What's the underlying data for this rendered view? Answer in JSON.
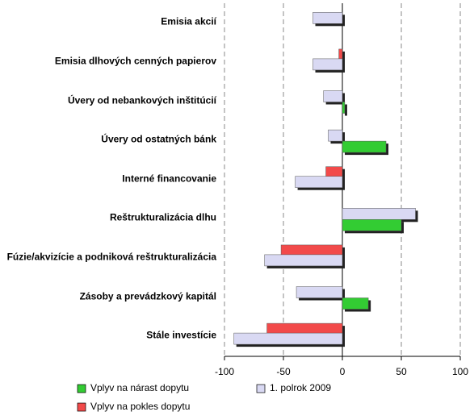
{
  "chart_data": {
    "type": "bar",
    "orientation": "horizontal",
    "categories": [
      "Emisia akcií",
      "Emisia dlhových cenných papierov",
      "Úvery od nebankových inštitúcií",
      "Úvery od ostatných bánk",
      "Interné financovanie",
      "Reštrukturalizácia dlhu",
      "Fúzie/akvizície a podniková reštrukturalizácia",
      "Zásoby a prevádzkový kapitál",
      "Stále investície"
    ],
    "series": [
      {
        "name": "Vplyv na nárast dopytu",
        "color": "#33cc33",
        "values": [
          null,
          null,
          2,
          37,
          null,
          50,
          null,
          22,
          null
        ]
      },
      {
        "name": "1. polrok 2009",
        "color": "#d9d9f3",
        "values": [
          -25,
          -25,
          -16,
          -12,
          -40,
          62,
          -66,
          -39,
          -92
        ]
      },
      {
        "name": "Vplyv na pokles dopytu",
        "color": "#f24a4a",
        "values": [
          null,
          -3,
          null,
          null,
          -14,
          null,
          -52,
          null,
          -64
        ]
      }
    ],
    "xlim": [
      -100,
      100
    ],
    "xticks": [
      -100,
      -50,
      0,
      50,
      100
    ],
    "grid": true
  }
}
